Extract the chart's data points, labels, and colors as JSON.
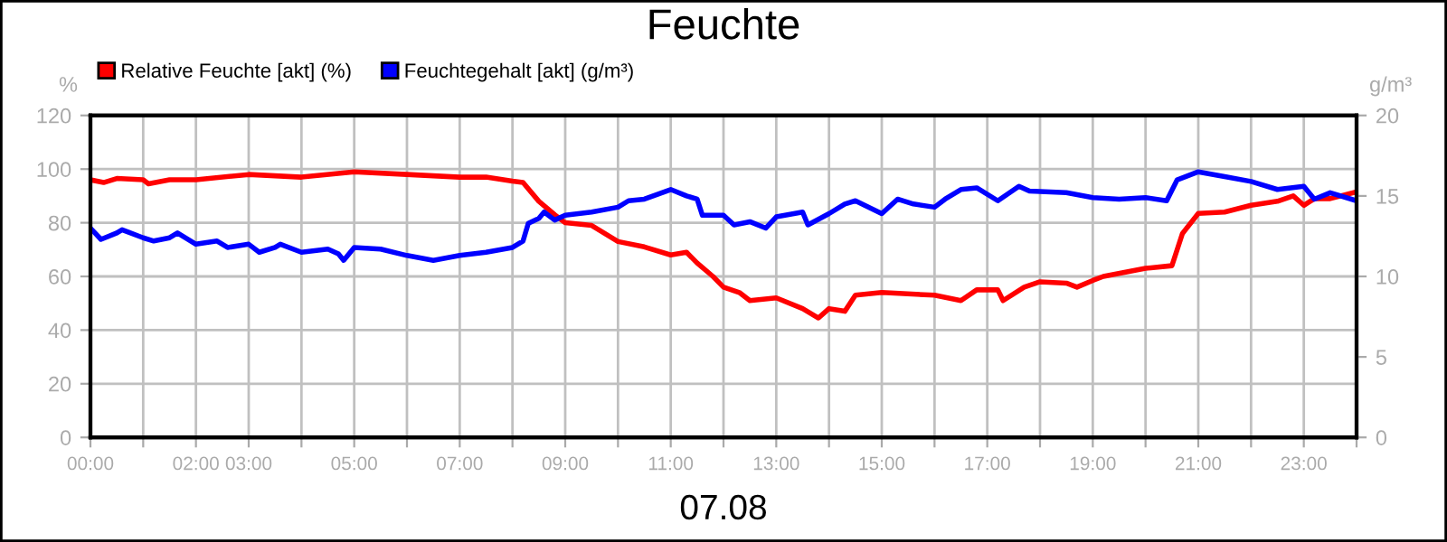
{
  "chart_data": {
    "type": "line",
    "title": "Feuchte",
    "xlabel": "07.08",
    "ylabel": "%",
    "y2label": "g/m³",
    "xlim": [
      0,
      24
    ],
    "xticks": [
      {
        "value": 0,
        "label": "00:00"
      },
      {
        "value": 1,
        "label": null
      },
      {
        "value": 2,
        "label": "02:00"
      },
      {
        "value": 3,
        "label": "03:00"
      },
      {
        "value": 4,
        "label": null
      },
      {
        "value": 5,
        "label": "05:00"
      },
      {
        "value": 6,
        "label": null
      },
      {
        "value": 7,
        "label": "07:00"
      },
      {
        "value": 8,
        "label": null
      },
      {
        "value": 9,
        "label": "09:00"
      },
      {
        "value": 10,
        "label": null
      },
      {
        "value": 11,
        "label": "11:00"
      },
      {
        "value": 12,
        "label": null
      },
      {
        "value": 13,
        "label": "13:00"
      },
      {
        "value": 14,
        "label": null
      },
      {
        "value": 15,
        "label": "15:00"
      },
      {
        "value": 16,
        "label": null
      },
      {
        "value": 17,
        "label": "17:00"
      },
      {
        "value": 18,
        "label": null
      },
      {
        "value": 19,
        "label": "19:00"
      },
      {
        "value": 20,
        "label": null
      },
      {
        "value": 21,
        "label": "21:00"
      },
      {
        "value": 22,
        "label": null
      },
      {
        "value": 23,
        "label": "23:00"
      },
      {
        "value": 24,
        "label": null
      }
    ],
    "ylim": [
      0,
      120
    ],
    "yticks": [
      0,
      20,
      40,
      60,
      80,
      100,
      120
    ],
    "y2lim": [
      0,
      20
    ],
    "y2ticks": [
      0,
      5,
      10,
      15,
      20
    ],
    "grid": true,
    "legend": "top left",
    "line_style": "solid",
    "marker": "none",
    "series": [
      {
        "name": "Relative Feuchte [akt] (%)",
        "color": "#ff0000",
        "x": [
          0,
          0.25,
          0.5,
          1,
          1.1,
          1.5,
          2,
          3,
          4,
          5,
          6,
          7,
          7.5,
          8,
          8.2,
          8.5,
          8.8,
          9,
          9.5,
          10,
          10.5,
          11,
          11.3,
          11.5,
          11.8,
          12,
          12.3,
          12.5,
          13,
          13.5,
          13.8,
          14,
          14.3,
          14.5,
          15,
          16,
          16.5,
          16.8,
          17.2,
          17.3,
          17.7,
          18,
          18.5,
          18.7,
          19,
          19.2,
          20,
          20.5,
          20.7,
          21,
          21.5,
          22,
          22.5,
          22.8,
          23,
          23.2,
          23.5,
          24
        ],
        "values": [
          96,
          95,
          96.5,
          96,
          94.5,
          96,
          96,
          98,
          97,
          99,
          98,
          97,
          97,
          95.5,
          95,
          88,
          83,
          80,
          79,
          73,
          71,
          68,
          69,
          65,
          60,
          56,
          54,
          51,
          52,
          48,
          44.5,
          48,
          47,
          53,
          54,
          53,
          51,
          55,
          55,
          51,
          56,
          58,
          57.5,
          56,
          58.5,
          60,
          63,
          64,
          76,
          83.5,
          84,
          86.5,
          88,
          90,
          86.5,
          89,
          89,
          91.5
        ]
      },
      {
        "name": "Feuchtegehalt [akt] (g/m³)",
        "color": "#0000ff",
        "axis": "y2",
        "x": [
          0,
          0.2,
          0.5,
          0.6,
          1,
          1.2,
          1.5,
          1.65,
          2,
          2.4,
          2.6,
          3,
          3.2,
          3.5,
          3.6,
          4,
          4.5,
          4.7,
          4.8,
          5,
          5.5,
          6,
          6.5,
          7,
          7.5,
          8,
          8.2,
          8.3,
          8.5,
          8.6,
          8.8,
          9,
          9.5,
          10,
          10.2,
          10.5,
          11,
          11.3,
          11.5,
          11.6,
          12,
          12.2,
          12.5,
          12.8,
          13,
          13.5,
          13.6,
          14,
          14.3,
          14.5,
          15,
          15.3,
          15.6,
          16,
          16.2,
          16.5,
          16.8,
          17.2,
          17.6,
          17.8,
          18.5,
          19,
          19.5,
          20,
          20.4,
          20.6,
          21,
          21.5,
          22,
          22.5,
          23,
          23.2,
          23.5,
          24
        ],
        "values": [
          13.0,
          12.3,
          12.7,
          12.9,
          12.4,
          12.2,
          12.4,
          12.7,
          12.0,
          12.2,
          11.8,
          12.0,
          11.5,
          11.8,
          12.0,
          11.5,
          11.7,
          11.4,
          11.0,
          11.8,
          11.7,
          11.3,
          11.0,
          11.3,
          11.5,
          11.8,
          12.2,
          13.3,
          13.6,
          14.0,
          13.5,
          13.8,
          14.0,
          14.3,
          14.7,
          14.8,
          15.4,
          15.0,
          14.8,
          13.8,
          13.8,
          13.2,
          13.4,
          13.0,
          13.7,
          14.0,
          13.2,
          13.9,
          14.5,
          14.7,
          13.9,
          14.8,
          14.5,
          14.3,
          14.8,
          15.4,
          15.5,
          14.7,
          15.6,
          15.3,
          15.2,
          14.9,
          14.8,
          14.9,
          14.7,
          16.0,
          16.5,
          16.2,
          15.9,
          15.4,
          15.6,
          14.8,
          15.2,
          14.7
        ]
      }
    ]
  }
}
